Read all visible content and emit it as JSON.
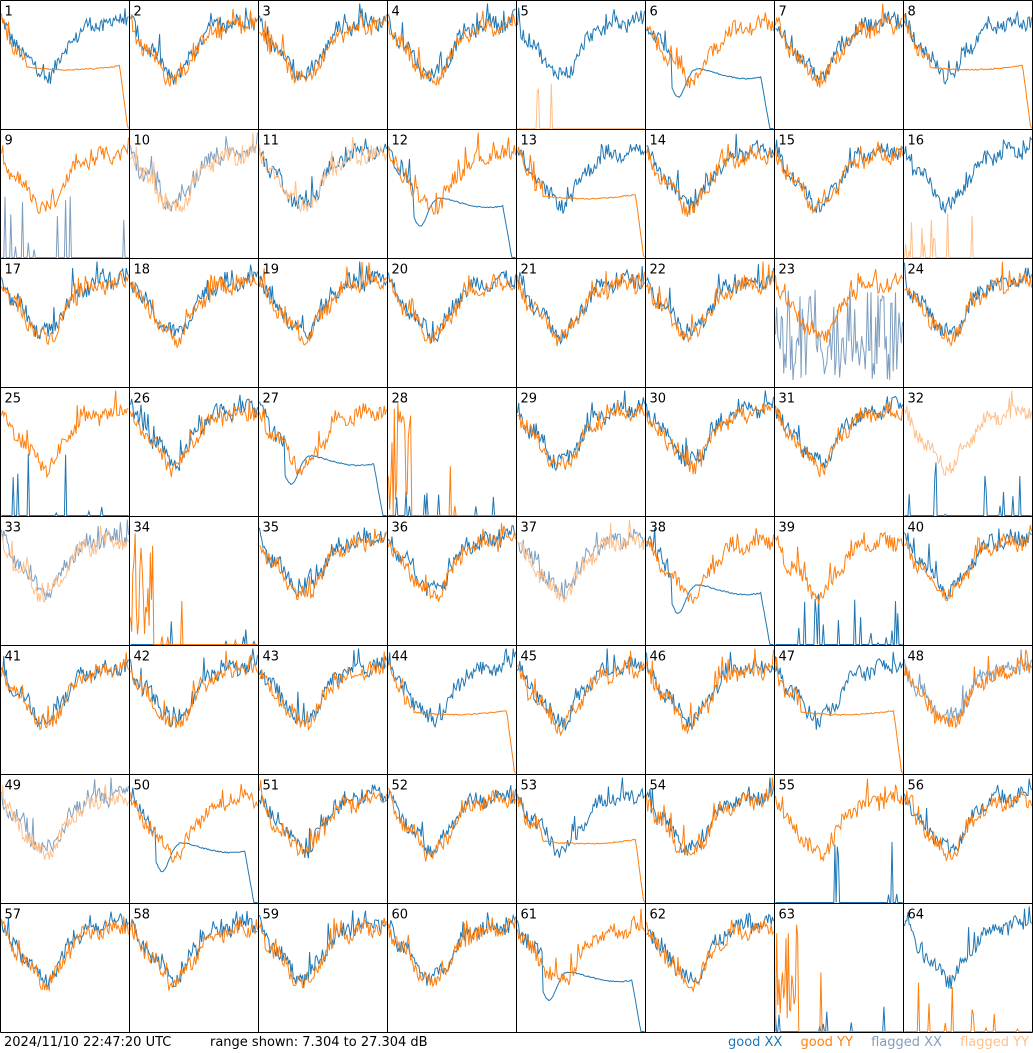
{
  "timestamp": "2024/11/10 22:47:20 UTC",
  "range_text": "range shown: 7.304 to 27.304 dB",
  "legend": [
    {
      "label": "good XX",
      "color": "#1f77b4"
    },
    {
      "label": "good YY",
      "color": "#ff7f0e"
    },
    {
      "label": "flagged XX",
      "color": "#7f9fbf"
    },
    {
      "label": "flagged YY",
      "color": "#ffc08a"
    }
  ],
  "chart_data": {
    "type": "line",
    "layout": "8x8 small multiples",
    "ylim": [
      7.304,
      27.304
    ],
    "y_unit": "dB",
    "tiles": [
      {
        "id": "1",
        "xx": "good",
        "yy": "good",
        "pattern": "decay"
      },
      {
        "id": "2",
        "xx": "good",
        "yy": "good",
        "pattern": "normal"
      },
      {
        "id": "3",
        "xx": "good",
        "yy": "good",
        "pattern": "normal"
      },
      {
        "id": "4",
        "xx": "good",
        "yy": "good",
        "pattern": "normal"
      },
      {
        "id": "5",
        "xx": "good",
        "yy": "flagged",
        "pattern": "yy-spikes"
      },
      {
        "id": "6",
        "xx": "good",
        "yy": "good",
        "pattern": "xx-decay"
      },
      {
        "id": "7",
        "xx": "good",
        "yy": "good",
        "pattern": "normal"
      },
      {
        "id": "8",
        "xx": "good",
        "yy": "good",
        "pattern": "decay"
      },
      {
        "id": "9",
        "xx": "flagged",
        "yy": "good",
        "pattern": "xx-spikes"
      },
      {
        "id": "10",
        "xx": "flagged",
        "yy": "flagged",
        "pattern": "normal"
      },
      {
        "id": "11",
        "xx": "good",
        "yy": "flagged",
        "pattern": "normal"
      },
      {
        "id": "12",
        "xx": "good",
        "yy": "good",
        "pattern": "xx-decay"
      },
      {
        "id": "13",
        "xx": "good",
        "yy": "good",
        "pattern": "decay"
      },
      {
        "id": "14",
        "xx": "good",
        "yy": "good",
        "pattern": "normal"
      },
      {
        "id": "15",
        "xx": "good",
        "yy": "good",
        "pattern": "normal"
      },
      {
        "id": "16",
        "xx": "good",
        "yy": "flagged",
        "pattern": "yy-spikes"
      },
      {
        "id": "17",
        "xx": "good",
        "yy": "good",
        "pattern": "normal"
      },
      {
        "id": "18",
        "xx": "good",
        "yy": "good",
        "pattern": "normal"
      },
      {
        "id": "19",
        "xx": "good",
        "yy": "good",
        "pattern": "normal"
      },
      {
        "id": "20",
        "xx": "good",
        "yy": "good",
        "pattern": "normal"
      },
      {
        "id": "21",
        "xx": "good",
        "yy": "good",
        "pattern": "normal"
      },
      {
        "id": "22",
        "xx": "good",
        "yy": "good",
        "pattern": "normal"
      },
      {
        "id": "23",
        "xx": "flagged",
        "yy": "good",
        "pattern": "xx-noisy"
      },
      {
        "id": "24",
        "xx": "good",
        "yy": "good",
        "pattern": "normal"
      },
      {
        "id": "25",
        "xx": "good",
        "yy": "good",
        "pattern": "xx-spikes"
      },
      {
        "id": "26",
        "xx": "good",
        "yy": "good",
        "pattern": "normal"
      },
      {
        "id": "27",
        "xx": "good",
        "yy": "good",
        "pattern": "xx-decay"
      },
      {
        "id": "28",
        "xx": "good",
        "yy": "good",
        "pattern": "yy-dead"
      },
      {
        "id": "29",
        "xx": "good",
        "yy": "good",
        "pattern": "normal"
      },
      {
        "id": "30",
        "xx": "good",
        "yy": "good",
        "pattern": "normal"
      },
      {
        "id": "31",
        "xx": "good",
        "yy": "good",
        "pattern": "normal"
      },
      {
        "id": "32",
        "xx": "good",
        "yy": "flagged",
        "pattern": "xx-spikes"
      },
      {
        "id": "33",
        "xx": "flagged",
        "yy": "flagged",
        "pattern": "normal"
      },
      {
        "id": "34",
        "xx": "good",
        "yy": "good",
        "pattern": "yy-dead"
      },
      {
        "id": "35",
        "xx": "good",
        "yy": "good",
        "pattern": "normal"
      },
      {
        "id": "36",
        "xx": "good",
        "yy": "good",
        "pattern": "normal"
      },
      {
        "id": "37",
        "xx": "flagged",
        "yy": "flagged",
        "pattern": "normal"
      },
      {
        "id": "38",
        "xx": "good",
        "yy": "good",
        "pattern": "xx-decay"
      },
      {
        "id": "39",
        "xx": "good",
        "yy": "good",
        "pattern": "xx-spikes"
      },
      {
        "id": "40",
        "xx": "good",
        "yy": "good",
        "pattern": "normal"
      },
      {
        "id": "41",
        "xx": "good",
        "yy": "good",
        "pattern": "normal"
      },
      {
        "id": "42",
        "xx": "good",
        "yy": "good",
        "pattern": "normal"
      },
      {
        "id": "43",
        "xx": "good",
        "yy": "good",
        "pattern": "normal"
      },
      {
        "id": "44",
        "xx": "good",
        "yy": "good",
        "pattern": "decay"
      },
      {
        "id": "45",
        "xx": "good",
        "yy": "good",
        "pattern": "normal"
      },
      {
        "id": "46",
        "xx": "good",
        "yy": "good",
        "pattern": "normal"
      },
      {
        "id": "47",
        "xx": "good",
        "yy": "good",
        "pattern": "decay"
      },
      {
        "id": "48",
        "xx": "flagged",
        "yy": "good",
        "pattern": "normal"
      },
      {
        "id": "49",
        "xx": "flagged",
        "yy": "flagged",
        "pattern": "normal"
      },
      {
        "id": "50",
        "xx": "good",
        "yy": "good",
        "pattern": "xx-decay"
      },
      {
        "id": "51",
        "xx": "good",
        "yy": "good",
        "pattern": "normal"
      },
      {
        "id": "52",
        "xx": "good",
        "yy": "good",
        "pattern": "normal"
      },
      {
        "id": "53",
        "xx": "good",
        "yy": "good",
        "pattern": "decay"
      },
      {
        "id": "54",
        "xx": "good",
        "yy": "good",
        "pattern": "normal"
      },
      {
        "id": "55",
        "xx": "good",
        "yy": "good",
        "pattern": "xx-spikes"
      },
      {
        "id": "56",
        "xx": "good",
        "yy": "good",
        "pattern": "normal"
      },
      {
        "id": "57",
        "xx": "good",
        "yy": "good",
        "pattern": "normal"
      },
      {
        "id": "58",
        "xx": "good",
        "yy": "good",
        "pattern": "normal"
      },
      {
        "id": "59",
        "xx": "good",
        "yy": "good",
        "pattern": "normal"
      },
      {
        "id": "60",
        "xx": "good",
        "yy": "good",
        "pattern": "normal"
      },
      {
        "id": "61",
        "xx": "good",
        "yy": "good",
        "pattern": "xx-decay"
      },
      {
        "id": "62",
        "xx": "good",
        "yy": "good",
        "pattern": "normal"
      },
      {
        "id": "63",
        "xx": "good",
        "yy": "good",
        "pattern": "yy-dead"
      },
      {
        "id": "64",
        "xx": "good",
        "yy": "good",
        "pattern": "yy-spikes"
      }
    ]
  }
}
